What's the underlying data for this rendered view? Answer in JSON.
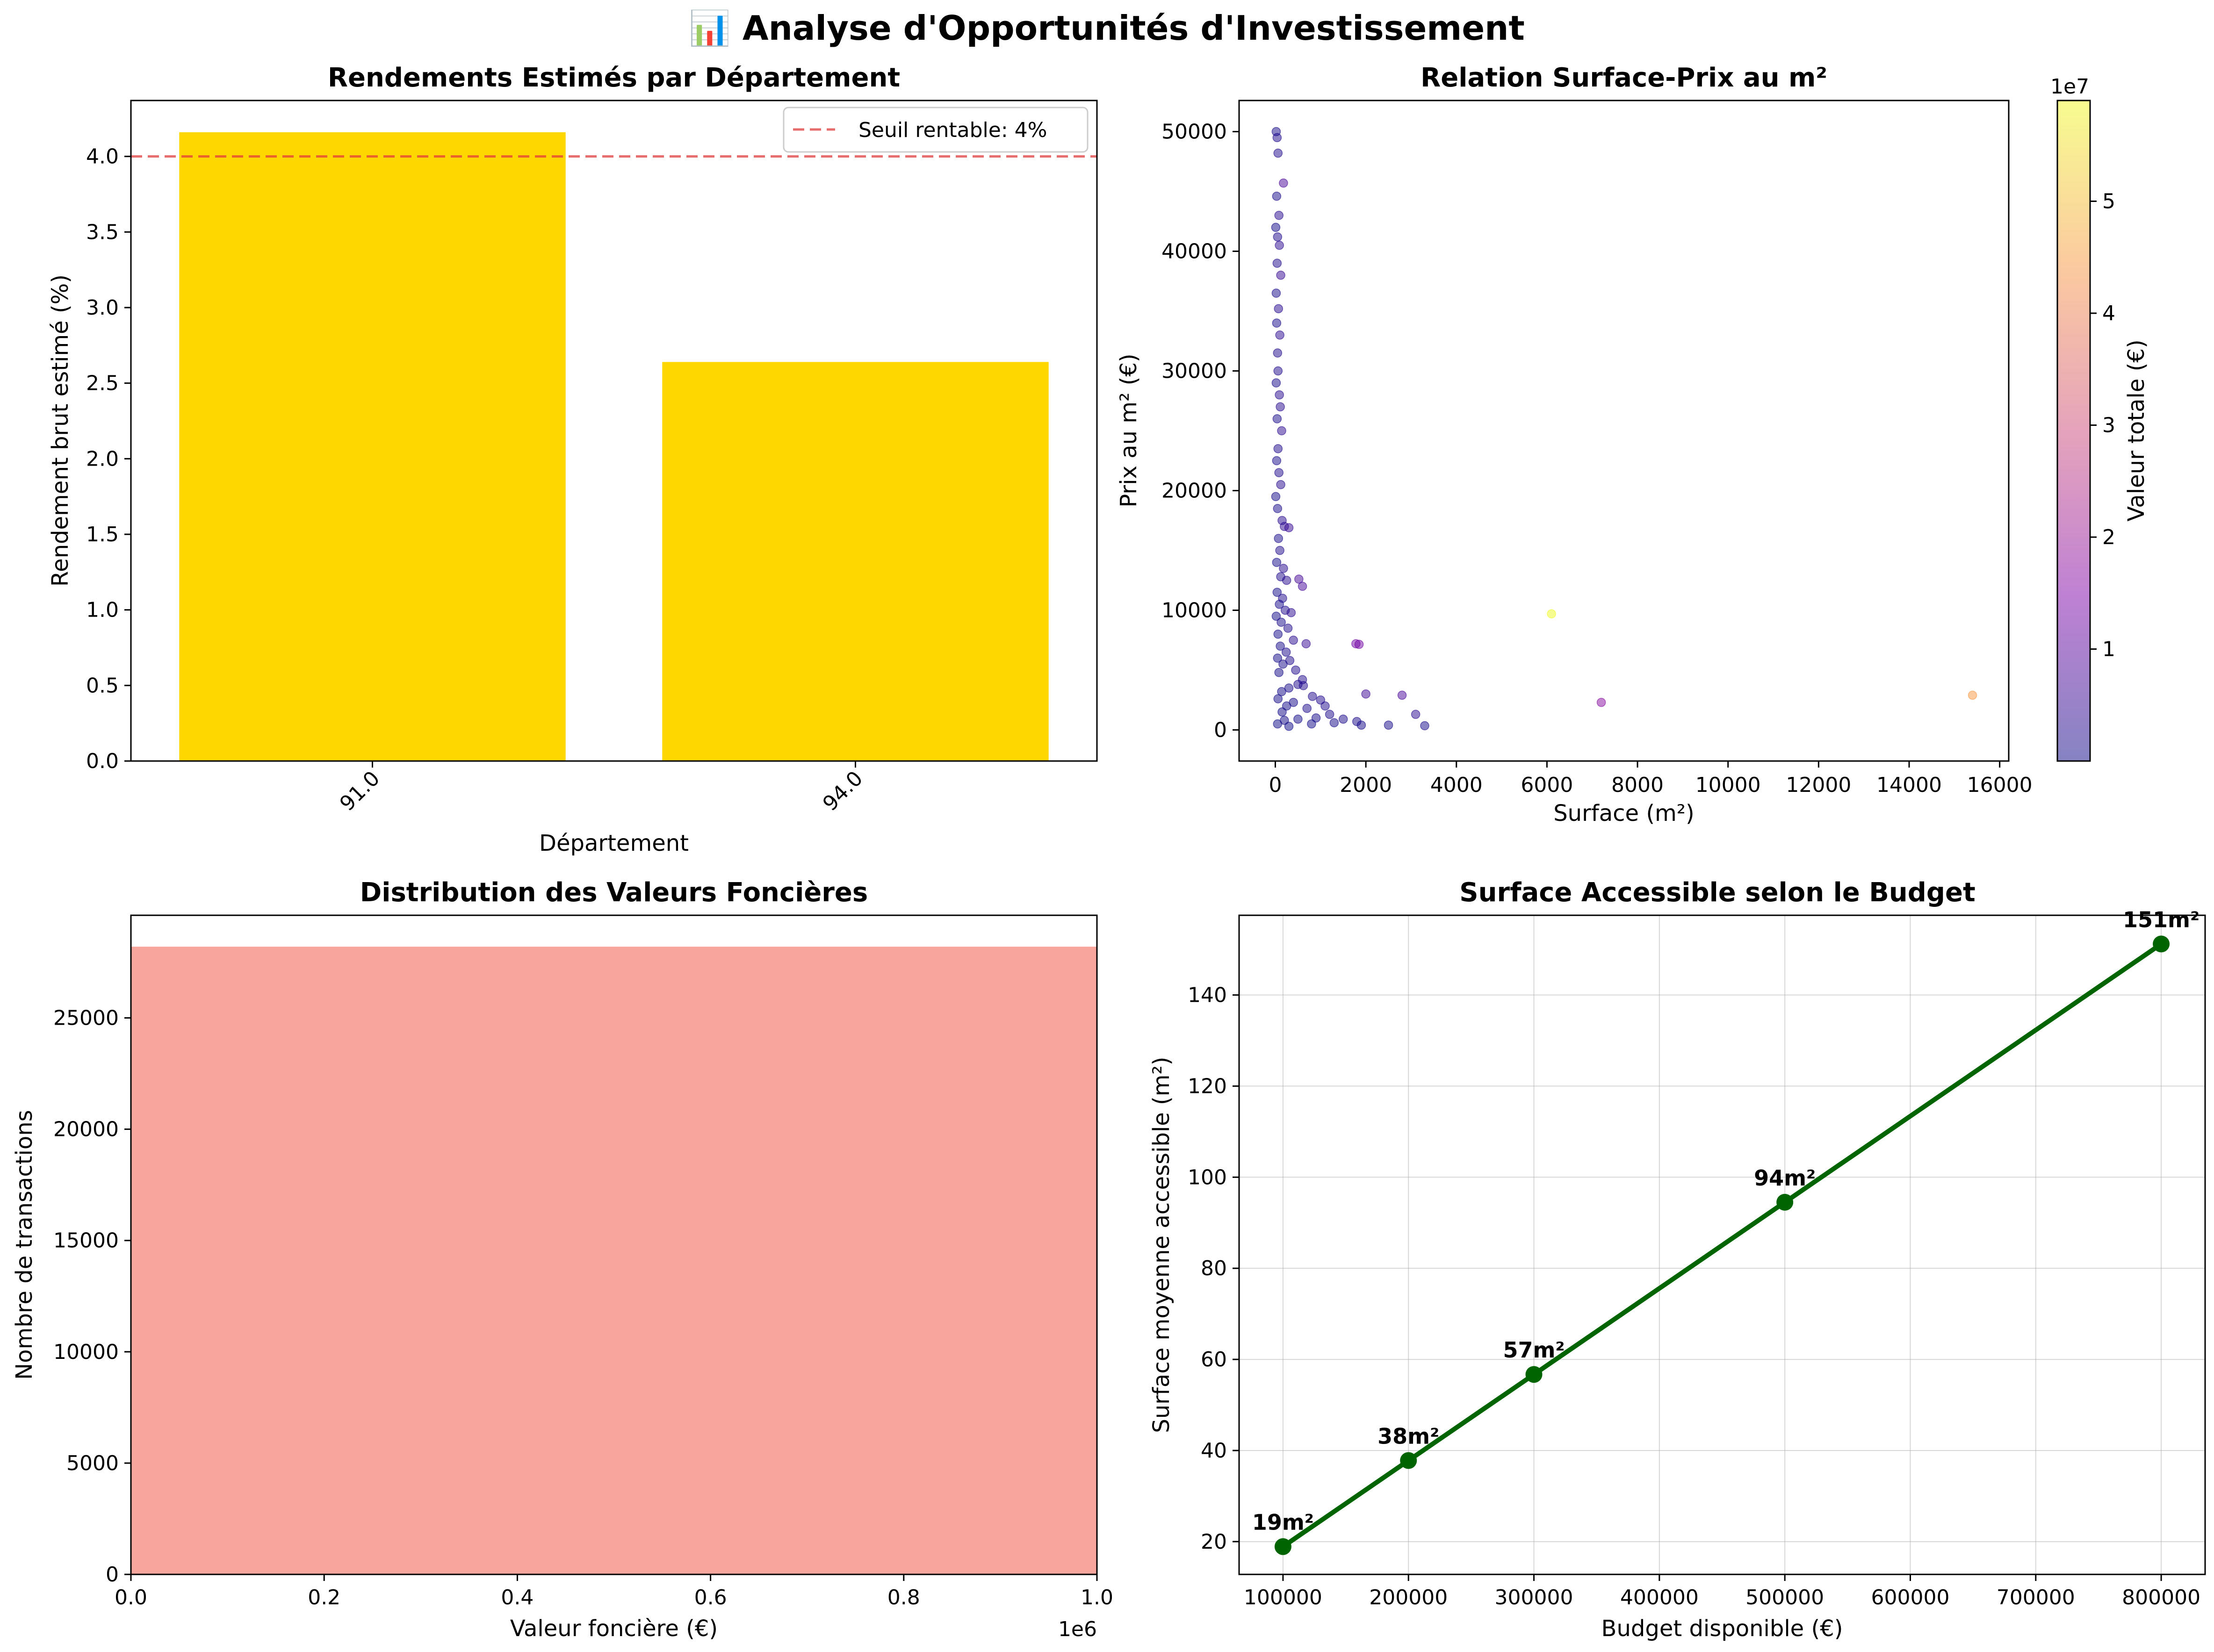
{
  "figure": {
    "title": "📊 Analyse d'Opportunités d'Investissement"
  },
  "chart_data": [
    {
      "type": "bar",
      "title": "Rendements Estimés par Département",
      "xlabel": "Département",
      "ylabel": "Rendement brut estimé (%)",
      "categories": [
        "91.0",
        "94.0"
      ],
      "values": [
        4.16,
        2.64
      ],
      "ylim": [
        0,
        4.37
      ],
      "yticks": [
        "0.0",
        "0.5",
        "1.0",
        "1.5",
        "2.0",
        "2.5",
        "3.0",
        "3.5",
        "4.0"
      ],
      "bar_color": "#FFD700",
      "threshold": {
        "value": 4.0,
        "label": "Seuil rentable: 4%",
        "color": "#e03c3c",
        "style": "dashed"
      },
      "legend_position": "top-right",
      "grid": false
    },
    {
      "type": "scatter",
      "title": "Relation Surface-Prix au m²",
      "xlabel": "Surface (m²)",
      "ylabel": "Prix au m² (€)",
      "xlim": [
        -800,
        16200
      ],
      "ylim": [
        -2600,
        52600
      ],
      "xticks": [
        "0",
        "2000",
        "4000",
        "6000",
        "8000",
        "10000",
        "12000",
        "14000",
        "16000"
      ],
      "yticks": [
        "0",
        "10000",
        "20000",
        "30000",
        "40000",
        "50000"
      ],
      "colormap": "plasma",
      "colorbar": {
        "label": "Valeur totale (€)",
        "scale_label": "1e7",
        "range": [
          0,
          5.9
        ],
        "ticks": [
          "1",
          "2",
          "3",
          "4",
          "5"
        ]
      },
      "points": [
        {
          "x": 20,
          "y": 50000,
          "v": 0.1
        },
        {
          "x": 40,
          "y": 49500,
          "v": 0.2
        },
        {
          "x": 60,
          "y": 48200,
          "v": 0.2
        },
        {
          "x": 180,
          "y": 45700,
          "v": 0.8
        },
        {
          "x": 30,
          "y": 44600,
          "v": 0.1
        },
        {
          "x": 80,
          "y": 43000,
          "v": 0.3
        },
        {
          "x": 10,
          "y": 42000,
          "v": 0.05
        },
        {
          "x": 50,
          "y": 41200,
          "v": 0.2
        },
        {
          "x": 90,
          "y": 40500,
          "v": 0.4
        },
        {
          "x": 40,
          "y": 39000,
          "v": 0.2
        },
        {
          "x": 120,
          "y": 38000,
          "v": 0.5
        },
        {
          "x": 20,
          "y": 36500,
          "v": 0.1
        },
        {
          "x": 70,
          "y": 35200,
          "v": 0.3
        },
        {
          "x": 30,
          "y": 34000,
          "v": 0.1
        },
        {
          "x": 100,
          "y": 33000,
          "v": 0.4
        },
        {
          "x": 50,
          "y": 31500,
          "v": 0.2
        },
        {
          "x": 60,
          "y": 30000,
          "v": 0.2
        },
        {
          "x": 20,
          "y": 29000,
          "v": 0.1
        },
        {
          "x": 90,
          "y": 28000,
          "v": 0.3
        },
        {
          "x": 110,
          "y": 27000,
          "v": 0.3
        },
        {
          "x": 40,
          "y": 26000,
          "v": 0.1
        },
        {
          "x": 140,
          "y": 25000,
          "v": 0.4
        },
        {
          "x": 60,
          "y": 23500,
          "v": 0.2
        },
        {
          "x": 30,
          "y": 22500,
          "v": 0.1
        },
        {
          "x": 80,
          "y": 21500,
          "v": 0.2
        },
        {
          "x": 120,
          "y": 20500,
          "v": 0.3
        },
        {
          "x": 10,
          "y": 19500,
          "v": 0.05
        },
        {
          "x": 50,
          "y": 18500,
          "v": 0.1
        },
        {
          "x": 150,
          "y": 17500,
          "v": 0.3
        },
        {
          "x": 200,
          "y": 17000,
          "v": 0.4
        },
        {
          "x": 300,
          "y": 16900,
          "v": 0.5
        },
        {
          "x": 70,
          "y": 16000,
          "v": 0.1
        },
        {
          "x": 100,
          "y": 15000,
          "v": 0.2
        },
        {
          "x": 30,
          "y": 14000,
          "v": 0.05
        },
        {
          "x": 180,
          "y": 13500,
          "v": 0.3
        },
        {
          "x": 120,
          "y": 12800,
          "v": 0.2
        },
        {
          "x": 250,
          "y": 12500,
          "v": 0.3
        },
        {
          "x": 520,
          "y": 12600,
          "v": 0.7
        },
        {
          "x": 600,
          "y": 12000,
          "v": 0.7
        },
        {
          "x": 40,
          "y": 11500,
          "v": 0.05
        },
        {
          "x": 160,
          "y": 11000,
          "v": 0.2
        },
        {
          "x": 90,
          "y": 10500,
          "v": 0.1
        },
        {
          "x": 220,
          "y": 10000,
          "v": 0.2
        },
        {
          "x": 350,
          "y": 9800,
          "v": 0.4
        },
        {
          "x": 20,
          "y": 9500,
          "v": 0.02
        },
        {
          "x": 130,
          "y": 9000,
          "v": 0.1
        },
        {
          "x": 280,
          "y": 8500,
          "v": 0.2
        },
        {
          "x": 60,
          "y": 8000,
          "v": 0.05
        },
        {
          "x": 400,
          "y": 7500,
          "v": 0.3
        },
        {
          "x": 680,
          "y": 7200,
          "v": 0.5
        },
        {
          "x": 1780,
          "y": 7200,
          "v": 1.3
        },
        {
          "x": 1850,
          "y": 7150,
          "v": 1.3
        },
        {
          "x": 110,
          "y": 7000,
          "v": 0.08
        },
        {
          "x": 240,
          "y": 6500,
          "v": 0.15
        },
        {
          "x": 50,
          "y": 6000,
          "v": 0.03
        },
        {
          "x": 320,
          "y": 5800,
          "v": 0.18
        },
        {
          "x": 170,
          "y": 5500,
          "v": 0.09
        },
        {
          "x": 450,
          "y": 5000,
          "v": 0.22
        },
        {
          "x": 80,
          "y": 4800,
          "v": 0.04
        },
        {
          "x": 600,
          "y": 4200,
          "v": 0.25
        },
        {
          "x": 500,
          "y": 3800,
          "v": 0.2
        },
        {
          "x": 620,
          "y": 3700,
          "v": 0.23
        },
        {
          "x": 300,
          "y": 3500,
          "v": 0.1
        },
        {
          "x": 140,
          "y": 3200,
          "v": 0.04
        },
        {
          "x": 820,
          "y": 2800,
          "v": 0.23
        },
        {
          "x": 1000,
          "y": 2500,
          "v": 0.25
        },
        {
          "x": 2000,
          "y": 3000,
          "v": 0.6
        },
        {
          "x": 2800,
          "y": 2900,
          "v": 0.8
        },
        {
          "x": 60,
          "y": 2600,
          "v": 0.02
        },
        {
          "x": 400,
          "y": 2300,
          "v": 0.09
        },
        {
          "x": 1100,
          "y": 2000,
          "v": 0.22
        },
        {
          "x": 250,
          "y": 2000,
          "v": 0.05
        },
        {
          "x": 700,
          "y": 1800,
          "v": 0.13
        },
        {
          "x": 1200,
          "y": 1300,
          "v": 0.16
        },
        {
          "x": 1500,
          "y": 900,
          "v": 0.14
        },
        {
          "x": 3100,
          "y": 1300,
          "v": 0.4
        },
        {
          "x": 900,
          "y": 1000,
          "v": 0.09
        },
        {
          "x": 1800,
          "y": 700,
          "v": 0.13
        },
        {
          "x": 500,
          "y": 900,
          "v": 0.05
        },
        {
          "x": 2500,
          "y": 400,
          "v": 0.1
        },
        {
          "x": 3300,
          "y": 350,
          "v": 0.12
        },
        {
          "x": 1900,
          "y": 400,
          "v": 0.08
        },
        {
          "x": 150,
          "y": 1500,
          "v": 0.02
        },
        {
          "x": 800,
          "y": 500,
          "v": 0.04
        },
        {
          "x": 300,
          "y": 300,
          "v": 0.01
        },
        {
          "x": 50,
          "y": 500,
          "v": 0.003
        },
        {
          "x": 1300,
          "y": 600,
          "v": 0.08
        },
        {
          "x": 200,
          "y": 800,
          "v": 0.02
        },
        {
          "x": 7200,
          "y": 2300,
          "v": 1.65
        },
        {
          "x": 6100,
          "y": 9700,
          "v": 5.9
        },
        {
          "x": 15400,
          "y": 2900,
          "v": 4.45
        }
      ]
    },
    {
      "type": "bar",
      "title": "Distribution des Valeurs Foncières",
      "xlabel": "Valeur foncière (€)",
      "ylabel": "Nombre de transactions",
      "categories": [
        "0 – 1000000"
      ],
      "values": [
        28200
      ],
      "xlim": [
        0,
        1000000
      ],
      "ylim": [
        0,
        29610
      ],
      "x_offset_label": "1e6",
      "xticks": [
        "0.0",
        "0.2",
        "0.4",
        "0.6",
        "0.8",
        "1.0"
      ],
      "yticks": [
        "0",
        "5000",
        "10000",
        "15000",
        "20000",
        "25000"
      ],
      "bar_color": "#F8A59D",
      "grid": false
    },
    {
      "type": "line",
      "title": "Surface Accessible selon le Budget",
      "xlabel": "Budget disponible (€)",
      "ylabel": "Surface moyenne accessible (m²)",
      "x": [
        100000,
        200000,
        300000,
        500000,
        800000
      ],
      "values": [
        18.9,
        37.8,
        56.7,
        94.5,
        151.2
      ],
      "point_labels": [
        "19m²",
        "38m²",
        "57m²",
        "94m²",
        "151m²"
      ],
      "xlim": [
        65000,
        835000
      ],
      "ylim": [
        12.8,
        157.5
      ],
      "xticks": [
        "100000",
        "200000",
        "300000",
        "400000",
        "500000",
        "600000",
        "700000",
        "800000"
      ],
      "yticks": [
        "20",
        "40",
        "60",
        "80",
        "100",
        "120",
        "140"
      ],
      "line_color": "#006400",
      "grid": true
    }
  ]
}
